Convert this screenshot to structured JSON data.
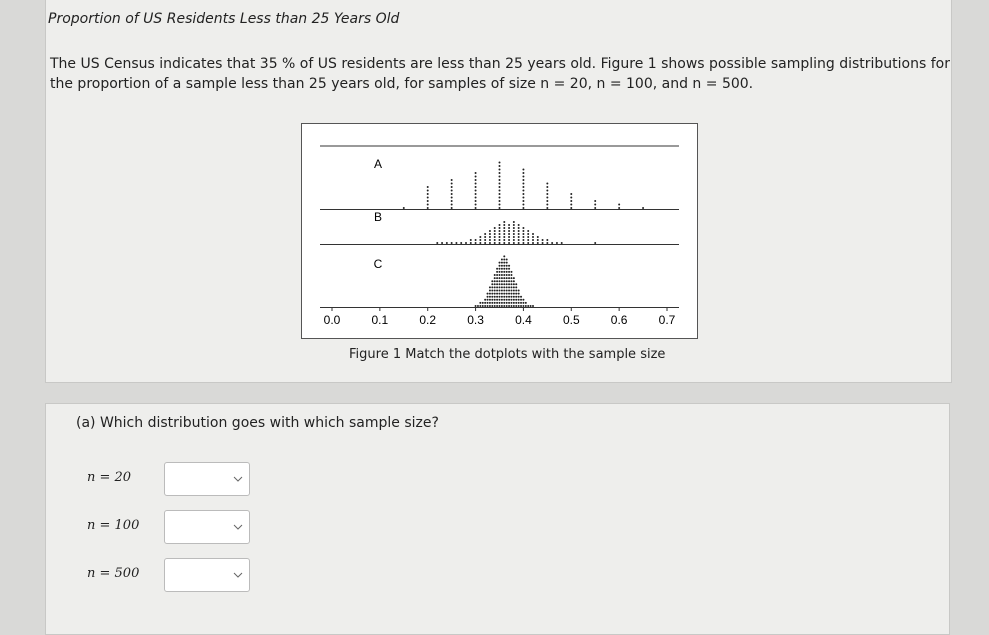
{
  "header": {
    "title": "Proportion of US Residents Less than 25 Years Old"
  },
  "intro": "The US Census indicates that 35 % of US residents are less than 25 years old. Figure 1 shows possible sampling distributions for the proportion of a sample less than 25 years old, for samples of size n = 20, n = 100, and n = 500.",
  "figure": {
    "caption": "Figure 1 Match the dotplots with the sample size",
    "xlim": [
      0,
      0.7
    ],
    "xticks": [
      {
        "value": 0,
        "label": "0.0"
      },
      0.1,
      0.2,
      0.3,
      0.4,
      0.5,
      0.6,
      0.7
    ],
    "panels": [
      {
        "label": "A",
        "x": [
          0.15,
          0.2,
          0.25,
          0.3,
          0.35,
          0.4,
          0.45,
          0.5,
          0.55,
          0.6,
          0.65
        ],
        "counts": [
          1,
          7,
          9,
          11,
          14,
          12,
          8,
          5,
          3,
          2,
          1
        ]
      },
      {
        "label": "B",
        "x": [
          0.22,
          0.23,
          0.24,
          0.25,
          0.26,
          0.27,
          0.28,
          0.29,
          0.3,
          0.31,
          0.32,
          0.33,
          0.34,
          0.35,
          0.36,
          0.37,
          0.38,
          0.39,
          0.4,
          0.41,
          0.42,
          0.43,
          0.44,
          0.45,
          0.46,
          0.47,
          0.48,
          0.55
        ],
        "counts": [
          1,
          1,
          1,
          1,
          1,
          1,
          1,
          2,
          2,
          3,
          4,
          5,
          6,
          7,
          8,
          7,
          8,
          7,
          6,
          5,
          4,
          3,
          2,
          2,
          1,
          1,
          1,
          1
        ]
      },
      {
        "label": "C",
        "x": [
          0.3,
          0.305,
          0.31,
          0.315,
          0.32,
          0.325,
          0.33,
          0.335,
          0.34,
          0.345,
          0.35,
          0.355,
          0.36,
          0.365,
          0.37,
          0.375,
          0.38,
          0.385,
          0.39,
          0.395,
          0.4,
          0.405,
          0.41,
          0.415,
          0.42
        ],
        "counts": [
          1,
          1,
          2,
          2,
          3,
          5,
          7,
          9,
          11,
          13,
          15,
          16,
          17,
          16,
          14,
          12,
          10,
          8,
          6,
          4,
          3,
          2,
          1,
          1,
          1
        ]
      }
    ]
  },
  "question": {
    "prompt": "(a) Which distribution goes with which sample size?",
    "rows": [
      "n = 20",
      "n = 100",
      "n = 500"
    ]
  }
}
